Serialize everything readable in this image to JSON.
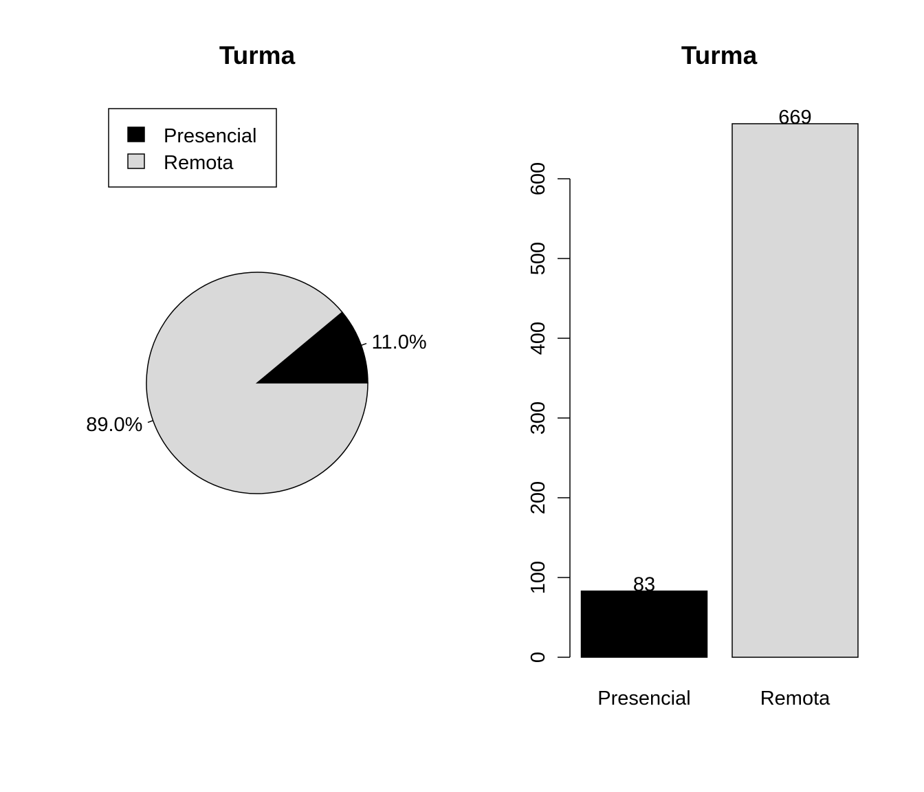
{
  "chart_data": [
    {
      "type": "pie",
      "title": "Turma",
      "categories": [
        "Presencial",
        "Remota"
      ],
      "values": [
        83,
        669
      ],
      "slice_labels": [
        "11.0%",
        "89.0%"
      ],
      "colors": [
        "#000000",
        "#d9d9d9"
      ],
      "legend": {
        "position": "top-left",
        "entries": [
          "Presencial",
          "Remota"
        ]
      }
    },
    {
      "type": "bar",
      "title": "Turma",
      "categories": [
        "Presencial",
        "Remota"
      ],
      "values": [
        83,
        669
      ],
      "data_labels": [
        "83",
        "669"
      ],
      "colors": [
        "#000000",
        "#d9d9d9"
      ],
      "y_ticks": [
        0,
        100,
        200,
        300,
        400,
        500,
        600
      ],
      "ylim": [
        0,
        600
      ],
      "xlabel": "",
      "ylabel": ""
    }
  ]
}
